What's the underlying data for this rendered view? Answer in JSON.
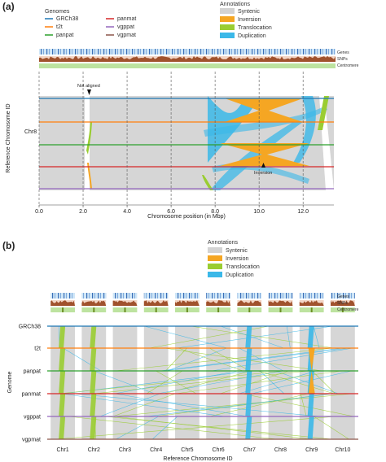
{
  "panel_a": {
    "label": "(a)",
    "legend_genomes_title": "Genomes",
    "genomes": [
      {
        "name": "GRCh38",
        "color": "#1f77b4"
      },
      {
        "name": "t2t",
        "color": "#ff7f0e"
      },
      {
        "name": "panpat",
        "color": "#2ca02c"
      },
      {
        "name": "panmat",
        "color": "#d62728"
      },
      {
        "name": "vgppat",
        "color": "#9467bd"
      },
      {
        "name": "vgpmat",
        "color": "#8c564b"
      }
    ],
    "legend_annotations_title": "Annotations",
    "annotations": [
      {
        "name": "Syntenic",
        "color": "#d3d3d3"
      },
      {
        "name": "Inversion",
        "color": "#f5a623"
      },
      {
        "name": "Translocation",
        "color": "#9acd32"
      },
      {
        "name": "Duplication",
        "color": "#3bb8e8"
      }
    ],
    "track_labels": [
      "Genes",
      "SNPs",
      "Centromere"
    ],
    "annotation_not_aligned": "Not aligned",
    "annotation_inversion": "Inversion"
  },
  "panel_b": {
    "label": "(b)",
    "legend_annotations_title": "Annotations",
    "annotations": [
      {
        "name": "Syntenic",
        "color": "#d3d3d3"
      },
      {
        "name": "Inversion",
        "color": "#f5a623"
      },
      {
        "name": "Translocation",
        "color": "#9acd32"
      },
      {
        "name": "Duplication",
        "color": "#3bb8e8"
      }
    ],
    "track_labels": [
      "Genes",
      "SNPs",
      "Centromere"
    ]
  },
  "chart_data": [
    {
      "type": "synteny",
      "panel": "a",
      "ylabel": "Reference Chromosome ID",
      "xlabel": "Chromosome position (in Mbp)",
      "y_category": "Chr8",
      "xlim": [
        0,
        13.4
      ],
      "xticks": [
        0.0,
        2.0,
        4.0,
        6.0,
        8.0,
        10.0,
        12.0
      ],
      "xtick_labels": [
        "0.0",
        "2.0",
        "4.0",
        "6.0",
        "8.0",
        "10.0",
        "12.0"
      ],
      "genome_order": [
        "GRCh38",
        "t2t",
        "panpat",
        "panmat",
        "vgppat",
        "vgpmat"
      ],
      "features": {
        "not_aligned_at_mbp": 2.1,
        "inversion_span_mbp": [
          8.0,
          11.7
        ],
        "inversion_marker_at_mbp": 9.5,
        "duplication_span_mbp": [
          7.0,
          12.5
        ],
        "translocation_span_mbp": [
          2.0,
          2.2
        ]
      }
    },
    {
      "type": "synteny",
      "panel": "b",
      "ylabel": "Genome",
      "xlabel": "Reference Chromosome ID",
      "categories": [
        "Chr1",
        "Chr2",
        "Chr3",
        "Chr4",
        "Chr5",
        "Chr6",
        "Chr7",
        "Chr8",
        "Chr9",
        "Chr10"
      ],
      "genomes": [
        "GRCh38",
        "t2t",
        "panpat",
        "panmat",
        "vgppat",
        "vgpmat"
      ]
    }
  ]
}
